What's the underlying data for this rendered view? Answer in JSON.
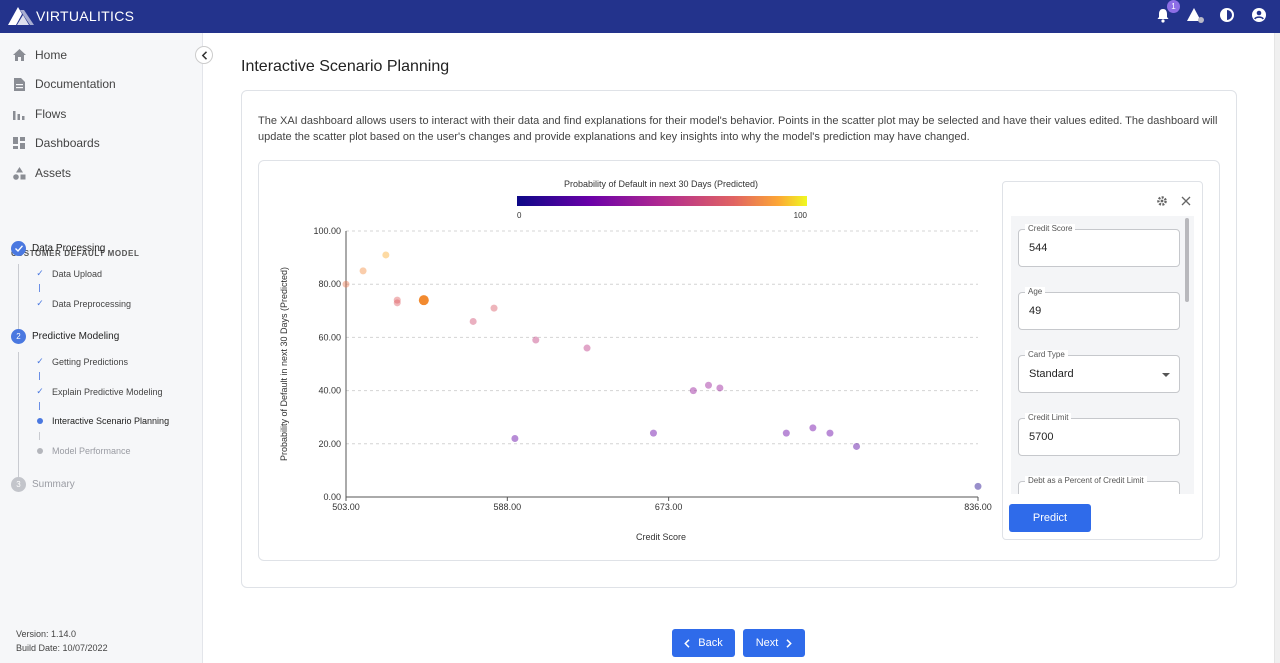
{
  "app": {
    "brand": "VIRTUALITICS",
    "notification_count": "1"
  },
  "sidebar": {
    "nav": [
      {
        "label": "Home",
        "icon": "home-icon"
      },
      {
        "label": "Documentation",
        "icon": "document-icon"
      },
      {
        "label": "Flows",
        "icon": "bar-chart-icon"
      },
      {
        "label": "Dashboards",
        "icon": "dashboard-icon"
      },
      {
        "label": "Assets",
        "icon": "shapes-icon"
      }
    ],
    "section_title": "CUSTOMER DEFAULT MODEL",
    "steps": [
      {
        "number": "1",
        "label": "Data Processing",
        "state": "done",
        "substeps": [
          {
            "label": "Data Upload",
            "state": "done"
          },
          {
            "label": "Data Preprocessing",
            "state": "done"
          }
        ]
      },
      {
        "number": "2",
        "label": "Predictive Modeling",
        "state": "active",
        "substeps": [
          {
            "label": "Getting Predictions",
            "state": "done"
          },
          {
            "label": "Explain Predictive Modeling",
            "state": "done"
          },
          {
            "label": "Interactive Scenario Planning",
            "state": "current"
          },
          {
            "label": "Model Performance",
            "state": "pending"
          }
        ]
      },
      {
        "number": "3",
        "label": "Summary",
        "state": "pending",
        "substeps": []
      }
    ],
    "version": "Version: 1.14.0",
    "build_date": "Build Date: 10/07/2022"
  },
  "main": {
    "title": "Interactive Scenario Planning",
    "description": "The XAI dashboard allows users to interact with their data and find explanations for their model's behavior. Points in the scatter plot may be selected and have their values edited. The dashboard will update the scatter plot based on the user's changes and provide explanations and key insights into why the model's prediction may have changed."
  },
  "chart_data": {
    "type": "scatter",
    "colorbar_title": "Probability of Default in next 30 Days (Predicted)",
    "colorbar_min": "0",
    "colorbar_max": "100",
    "xlabel": "Credit Score",
    "ylabel": "Probability of Default in next 30 Days (Predicted)",
    "xlim": [
      503,
      836
    ],
    "ylim": [
      0,
      100
    ],
    "x_ticks": [
      "503.00",
      "588.00",
      "673.00",
      "836.00"
    ],
    "x_tick_values": [
      503,
      588,
      673,
      836
    ],
    "y_ticks": [
      "0.00",
      "20.00",
      "40.00",
      "60.00",
      "80.00",
      "100.00"
    ],
    "y_tick_values": [
      0,
      20,
      40,
      60,
      80,
      100
    ],
    "grid": true,
    "points": [
      {
        "x": 503,
        "y": 80,
        "selected": false
      },
      {
        "x": 512,
        "y": 85,
        "selected": false
      },
      {
        "x": 524,
        "y": 91,
        "selected": false
      },
      {
        "x": 530,
        "y": 73,
        "selected": false
      },
      {
        "x": 530,
        "y": 74,
        "selected": false
      },
      {
        "x": 544,
        "y": 74,
        "selected": true
      },
      {
        "x": 570,
        "y": 66,
        "selected": false
      },
      {
        "x": 581,
        "y": 71,
        "selected": false
      },
      {
        "x": 592,
        "y": 22,
        "selected": false
      },
      {
        "x": 603,
        "y": 59,
        "selected": false
      },
      {
        "x": 630,
        "y": 56,
        "selected": false
      },
      {
        "x": 665,
        "y": 24,
        "selected": false
      },
      {
        "x": 686,
        "y": 40,
        "selected": false
      },
      {
        "x": 694,
        "y": 42,
        "selected": false
      },
      {
        "x": 700,
        "y": 41,
        "selected": false
      },
      {
        "x": 735,
        "y": 24,
        "selected": false
      },
      {
        "x": 749,
        "y": 26,
        "selected": false
      },
      {
        "x": 758,
        "y": 24,
        "selected": false
      },
      {
        "x": 772,
        "y": 19,
        "selected": false
      },
      {
        "x": 836,
        "y": 4,
        "selected": false
      }
    ]
  },
  "form": {
    "fields": [
      {
        "label": "Credit Score",
        "value": "544",
        "type": "text"
      },
      {
        "label": "Age",
        "value": "49",
        "type": "text"
      },
      {
        "label": "Card Type",
        "value": "Standard",
        "type": "select"
      },
      {
        "label": "Credit Limit",
        "value": "5700",
        "type": "text"
      },
      {
        "label": "Debt as a Percent of Credit Limit",
        "value": "",
        "type": "text"
      }
    ],
    "predict_label": "Predict"
  },
  "footer_nav": {
    "back_label": "Back",
    "next_label": "Next"
  },
  "colors": {
    "topbar": "#23338c",
    "primary_button": "#2f6bea",
    "active_step": "#4a78e0"
  }
}
